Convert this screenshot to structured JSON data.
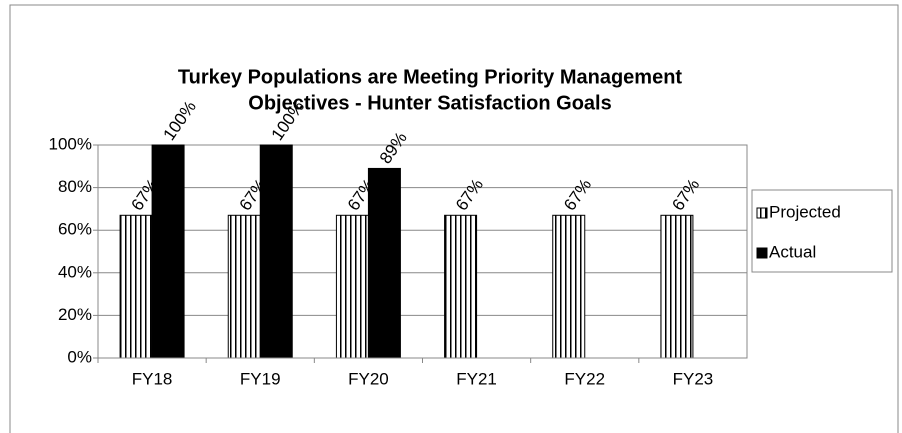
{
  "chart_data": {
    "type": "bar",
    "title": [
      "Turkey Populations are Meeting Priority Management",
      "Objectives - Hunter Satisfaction Goals"
    ],
    "categories": [
      "FY18",
      "FY19",
      "FY20",
      "FY21",
      "FY22",
      "FY23"
    ],
    "series": [
      {
        "name": "Projected",
        "color": "#000000",
        "pattern": "vertical-stripes",
        "values": [
          67,
          67,
          67,
          67,
          67,
          67
        ],
        "value_labels": [
          "67%",
          "67%",
          "67%",
          "67%",
          "67%",
          "67%"
        ]
      },
      {
        "name": "Actual",
        "color": "#000000",
        "values": [
          100,
          100,
          89,
          null,
          null,
          null
        ],
        "value_labels": [
          "100%",
          "100%",
          "89%",
          null,
          null,
          null
        ]
      }
    ],
    "ylim": [
      0,
      100
    ],
    "yticks": [
      {
        "value": 0,
        "label": "0%"
      },
      {
        "value": 20,
        "label": "20%"
      },
      {
        "value": 40,
        "label": "40%"
      },
      {
        "value": 60,
        "label": "60%"
      },
      {
        "value": 80,
        "label": "80%"
      },
      {
        "value": 100,
        "label": "100%"
      }
    ],
    "grid": true,
    "legend": "right"
  }
}
